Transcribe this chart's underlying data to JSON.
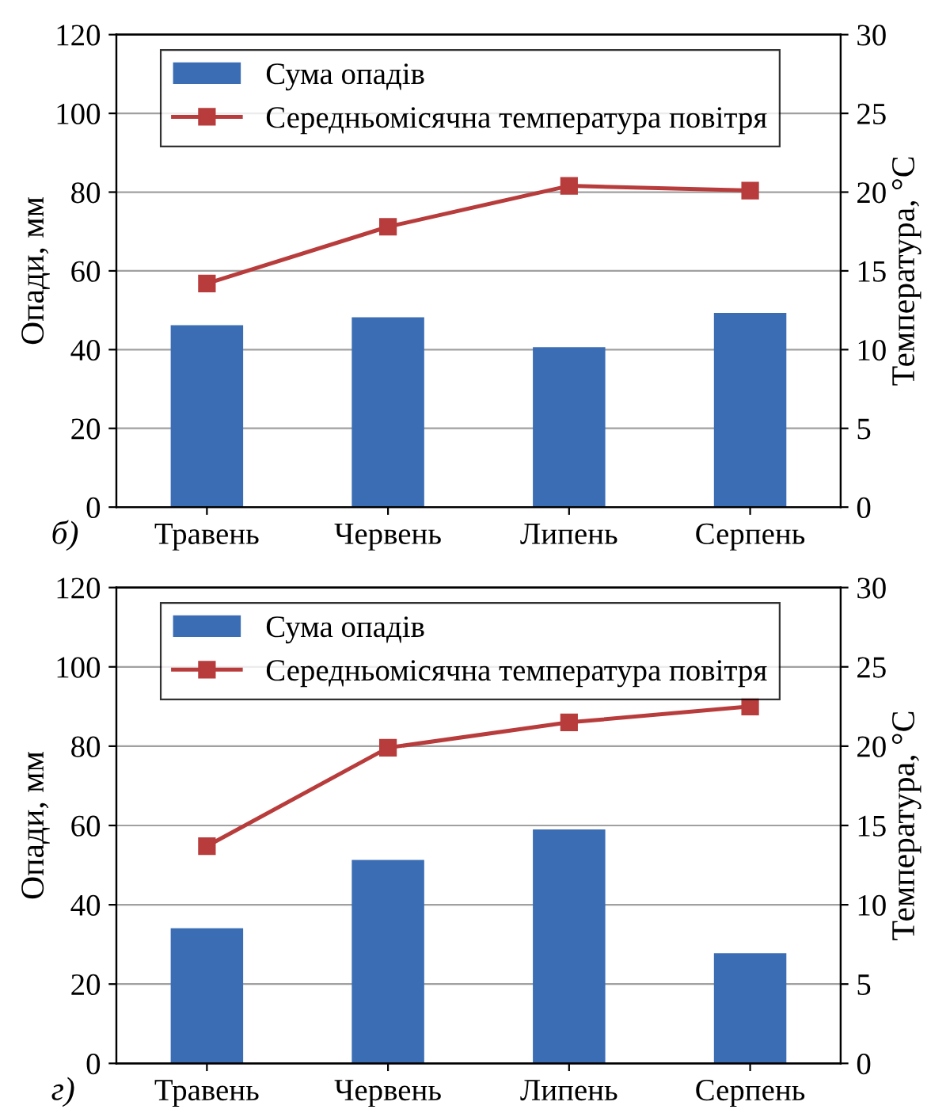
{
  "chart_data": [
    {
      "type": "bar",
      "categories": [
        "Травень",
        "Червень",
        "Липень",
        "Серпень"
      ],
      "ylabel": "Опади, мм",
      "y2label": "Температура, °C",
      "ylim": [
        0,
        120
      ],
      "yticks": [
        0,
        20,
        40,
        60,
        80,
        100,
        120
      ],
      "y2lim": [
        0,
        30
      ],
      "y2ticks": [
        0,
        5,
        10,
        15,
        20,
        25,
        30
      ],
      "grid": "y",
      "legend": "top left",
      "annotations": [
        "б)"
      ],
      "series": [
        {
          "name": "Сума опадів",
          "color": "#3b6db5",
          "values": [
            46.2,
            48.2,
            40.6,
            49.3
          ]
        },
        {
          "name": "Середньомісячна температура повітря",
          "type": "line",
          "axis": "y2",
          "color": "#b83c3c",
          "marker": "square",
          "values": [
            14.2,
            17.8,
            20.4,
            20.1
          ]
        }
      ]
    },
    {
      "type": "bar",
      "categories": [
        "Травень",
        "Червень",
        "Липень",
        "Серпень"
      ],
      "ylabel": "Опади, мм",
      "y2label": "Температура, °C",
      "ylim": [
        0,
        120
      ],
      "yticks": [
        0,
        20,
        40,
        60,
        80,
        100,
        120
      ],
      "y2lim": [
        0,
        30
      ],
      "y2ticks": [
        0,
        5,
        10,
        15,
        20,
        25,
        30
      ],
      "grid": "y",
      "legend": "top left",
      "annotations": [
        "г)"
      ],
      "series": [
        {
          "name": "Сума опадів",
          "color": "#3b6db5",
          "values": [
            34.1,
            51.3,
            59.0,
            27.8
          ]
        },
        {
          "name": "Середньомісячна температура повітря",
          "type": "line",
          "axis": "y2",
          "color": "#b83c3c",
          "marker": "square",
          "values": [
            13.7,
            19.9,
            21.5,
            22.5
          ]
        }
      ]
    }
  ]
}
